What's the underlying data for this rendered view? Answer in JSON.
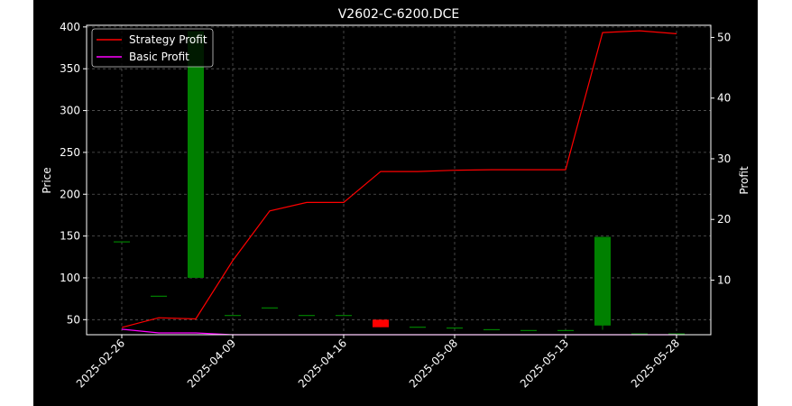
{
  "chart_data": {
    "type": "candlestick+line",
    "title": "V2602-C-6200.DCE",
    "xlabel": "",
    "ylabel_left": "Price",
    "ylabel_right": "Profit",
    "left_ylim": [
      32,
      402
    ],
    "right_ylim": [
      1,
      52
    ],
    "left_yticks": [
      50,
      100,
      150,
      200,
      250,
      300,
      350,
      400
    ],
    "right_yticks": [
      10,
      20,
      30,
      40,
      50
    ],
    "x_ticks": [
      {
        "index": 0,
        "label": "2025-02-26"
      },
      {
        "index": 3,
        "label": "2025-04-09"
      },
      {
        "index": 6,
        "label": "2025-04-16"
      },
      {
        "index": 9,
        "label": "2025-05-08"
      },
      {
        "index": 12,
        "label": "2025-05-13"
      },
      {
        "index": 15,
        "label": "2025-05-28"
      }
    ],
    "candles": [
      {
        "i": 0,
        "open": 143,
        "close": 143,
        "high": 143,
        "low": 143
      },
      {
        "i": 1,
        "open": 78,
        "close": 78,
        "high": 78,
        "low": 78
      },
      {
        "i": 2,
        "open": 100,
        "close": 395,
        "high": 395,
        "low": 100
      },
      {
        "i": 3,
        "open": 55,
        "close": 55,
        "high": 55,
        "low": 55
      },
      {
        "i": 4,
        "open": 64,
        "close": 64,
        "high": 64,
        "low": 64
      },
      {
        "i": 5,
        "open": 55,
        "close": 55,
        "high": 55,
        "low": 55
      },
      {
        "i": 6,
        "open": 55,
        "close": 55,
        "high": 55,
        "low": 55
      },
      {
        "i": 7,
        "open": 50,
        "close": 41,
        "high": 50,
        "low": 41
      },
      {
        "i": 8,
        "open": 41,
        "close": 41,
        "high": 41,
        "low": 41
      },
      {
        "i": 9,
        "open": 40,
        "close": 40,
        "high": 40,
        "low": 40
      },
      {
        "i": 10,
        "open": 38,
        "close": 38,
        "high": 38,
        "low": 38
      },
      {
        "i": 11,
        "open": 37,
        "close": 37,
        "high": 37,
        "low": 37
      },
      {
        "i": 12,
        "open": 37,
        "close": 37,
        "high": 37,
        "low": 37
      },
      {
        "i": 13,
        "open": 43,
        "close": 149,
        "high": 149,
        "low": 38
      },
      {
        "i": 14,
        "open": 33,
        "close": 33,
        "high": 33,
        "low": 33
      },
      {
        "i": 15,
        "open": 33,
        "close": 33,
        "high": 33,
        "low": 33
      }
    ],
    "series": [
      {
        "name": "Strategy Profit",
        "color": "#ff0000",
        "x": [
          0,
          1,
          2,
          3,
          4,
          5,
          6,
          7,
          8,
          9,
          10,
          11,
          12,
          13,
          14,
          15
        ],
        "values": [
          2.2,
          3.8,
          3.6,
          13.2,
          21.4,
          22.8,
          22.8,
          27.9,
          27.9,
          28.1,
          28.2,
          28.2,
          28.2,
          50.8,
          51.1,
          50.6
        ]
      },
      {
        "name": "Basic Profit",
        "color": "#ff00ff",
        "x": [
          0,
          1,
          2,
          3,
          4,
          5,
          6,
          7,
          8,
          9,
          10,
          11,
          12,
          13,
          14,
          15
        ],
        "values": [
          1.9,
          1.3,
          1.3,
          1.0,
          1.0,
          1.0,
          1.0,
          1.0,
          1.0,
          1.0,
          1.0,
          1.0,
          1.0,
          1.0,
          1.0,
          1.0
        ]
      }
    ],
    "up_color": "#008000",
    "down_color": "#ff0000",
    "grid": true,
    "legend_position": "top-left"
  }
}
